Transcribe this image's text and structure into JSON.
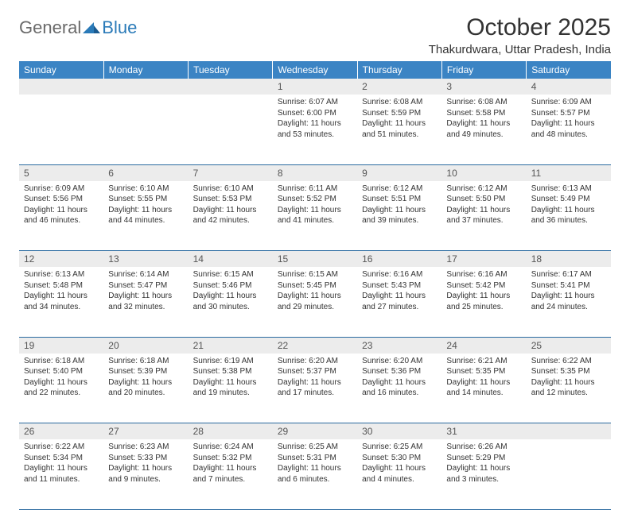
{
  "logo": {
    "general": "General",
    "blue": "Blue"
  },
  "title": "October 2025",
  "location": "Thakurdwara, Uttar Pradesh, India",
  "colors": {
    "header_bg": "#3b84c4",
    "header_text": "#ffffff",
    "daynum_bg": "#ececec",
    "border": "#2a6aa0",
    "logo_gray": "#6a6a6a",
    "logo_blue": "#2a7ab8"
  },
  "weekdays": [
    "Sunday",
    "Monday",
    "Tuesday",
    "Wednesday",
    "Thursday",
    "Friday",
    "Saturday"
  ],
  "weeks": [
    {
      "nums": [
        "",
        "",
        "",
        "1",
        "2",
        "3",
        "4"
      ],
      "cells": [
        {
          "sunrise": "",
          "sunset": "",
          "daylight": ""
        },
        {
          "sunrise": "",
          "sunset": "",
          "daylight": ""
        },
        {
          "sunrise": "",
          "sunset": "",
          "daylight": ""
        },
        {
          "sunrise": "Sunrise: 6:07 AM",
          "sunset": "Sunset: 6:00 PM",
          "daylight": "Daylight: 11 hours and 53 minutes."
        },
        {
          "sunrise": "Sunrise: 6:08 AM",
          "sunset": "Sunset: 5:59 PM",
          "daylight": "Daylight: 11 hours and 51 minutes."
        },
        {
          "sunrise": "Sunrise: 6:08 AM",
          "sunset": "Sunset: 5:58 PM",
          "daylight": "Daylight: 11 hours and 49 minutes."
        },
        {
          "sunrise": "Sunrise: 6:09 AM",
          "sunset": "Sunset: 5:57 PM",
          "daylight": "Daylight: 11 hours and 48 minutes."
        }
      ]
    },
    {
      "nums": [
        "5",
        "6",
        "7",
        "8",
        "9",
        "10",
        "11"
      ],
      "cells": [
        {
          "sunrise": "Sunrise: 6:09 AM",
          "sunset": "Sunset: 5:56 PM",
          "daylight": "Daylight: 11 hours and 46 minutes."
        },
        {
          "sunrise": "Sunrise: 6:10 AM",
          "sunset": "Sunset: 5:55 PM",
          "daylight": "Daylight: 11 hours and 44 minutes."
        },
        {
          "sunrise": "Sunrise: 6:10 AM",
          "sunset": "Sunset: 5:53 PM",
          "daylight": "Daylight: 11 hours and 42 minutes."
        },
        {
          "sunrise": "Sunrise: 6:11 AM",
          "sunset": "Sunset: 5:52 PM",
          "daylight": "Daylight: 11 hours and 41 minutes."
        },
        {
          "sunrise": "Sunrise: 6:12 AM",
          "sunset": "Sunset: 5:51 PM",
          "daylight": "Daylight: 11 hours and 39 minutes."
        },
        {
          "sunrise": "Sunrise: 6:12 AM",
          "sunset": "Sunset: 5:50 PM",
          "daylight": "Daylight: 11 hours and 37 minutes."
        },
        {
          "sunrise": "Sunrise: 6:13 AM",
          "sunset": "Sunset: 5:49 PM",
          "daylight": "Daylight: 11 hours and 36 minutes."
        }
      ]
    },
    {
      "nums": [
        "12",
        "13",
        "14",
        "15",
        "16",
        "17",
        "18"
      ],
      "cells": [
        {
          "sunrise": "Sunrise: 6:13 AM",
          "sunset": "Sunset: 5:48 PM",
          "daylight": "Daylight: 11 hours and 34 minutes."
        },
        {
          "sunrise": "Sunrise: 6:14 AM",
          "sunset": "Sunset: 5:47 PM",
          "daylight": "Daylight: 11 hours and 32 minutes."
        },
        {
          "sunrise": "Sunrise: 6:15 AM",
          "sunset": "Sunset: 5:46 PM",
          "daylight": "Daylight: 11 hours and 30 minutes."
        },
        {
          "sunrise": "Sunrise: 6:15 AM",
          "sunset": "Sunset: 5:45 PM",
          "daylight": "Daylight: 11 hours and 29 minutes."
        },
        {
          "sunrise": "Sunrise: 6:16 AM",
          "sunset": "Sunset: 5:43 PM",
          "daylight": "Daylight: 11 hours and 27 minutes."
        },
        {
          "sunrise": "Sunrise: 6:16 AM",
          "sunset": "Sunset: 5:42 PM",
          "daylight": "Daylight: 11 hours and 25 minutes."
        },
        {
          "sunrise": "Sunrise: 6:17 AM",
          "sunset": "Sunset: 5:41 PM",
          "daylight": "Daylight: 11 hours and 24 minutes."
        }
      ]
    },
    {
      "nums": [
        "19",
        "20",
        "21",
        "22",
        "23",
        "24",
        "25"
      ],
      "cells": [
        {
          "sunrise": "Sunrise: 6:18 AM",
          "sunset": "Sunset: 5:40 PM",
          "daylight": "Daylight: 11 hours and 22 minutes."
        },
        {
          "sunrise": "Sunrise: 6:18 AM",
          "sunset": "Sunset: 5:39 PM",
          "daylight": "Daylight: 11 hours and 20 minutes."
        },
        {
          "sunrise": "Sunrise: 6:19 AM",
          "sunset": "Sunset: 5:38 PM",
          "daylight": "Daylight: 11 hours and 19 minutes."
        },
        {
          "sunrise": "Sunrise: 6:20 AM",
          "sunset": "Sunset: 5:37 PM",
          "daylight": "Daylight: 11 hours and 17 minutes."
        },
        {
          "sunrise": "Sunrise: 6:20 AM",
          "sunset": "Sunset: 5:36 PM",
          "daylight": "Daylight: 11 hours and 16 minutes."
        },
        {
          "sunrise": "Sunrise: 6:21 AM",
          "sunset": "Sunset: 5:35 PM",
          "daylight": "Daylight: 11 hours and 14 minutes."
        },
        {
          "sunrise": "Sunrise: 6:22 AM",
          "sunset": "Sunset: 5:35 PM",
          "daylight": "Daylight: 11 hours and 12 minutes."
        }
      ]
    },
    {
      "nums": [
        "26",
        "27",
        "28",
        "29",
        "30",
        "31",
        ""
      ],
      "cells": [
        {
          "sunrise": "Sunrise: 6:22 AM",
          "sunset": "Sunset: 5:34 PM",
          "daylight": "Daylight: 11 hours and 11 minutes."
        },
        {
          "sunrise": "Sunrise: 6:23 AM",
          "sunset": "Sunset: 5:33 PM",
          "daylight": "Daylight: 11 hours and 9 minutes."
        },
        {
          "sunrise": "Sunrise: 6:24 AM",
          "sunset": "Sunset: 5:32 PM",
          "daylight": "Daylight: 11 hours and 7 minutes."
        },
        {
          "sunrise": "Sunrise: 6:25 AM",
          "sunset": "Sunset: 5:31 PM",
          "daylight": "Daylight: 11 hours and 6 minutes."
        },
        {
          "sunrise": "Sunrise: 6:25 AM",
          "sunset": "Sunset: 5:30 PM",
          "daylight": "Daylight: 11 hours and 4 minutes."
        },
        {
          "sunrise": "Sunrise: 6:26 AM",
          "sunset": "Sunset: 5:29 PM",
          "daylight": "Daylight: 11 hours and 3 minutes."
        },
        {
          "sunrise": "",
          "sunset": "",
          "daylight": ""
        }
      ]
    }
  ]
}
